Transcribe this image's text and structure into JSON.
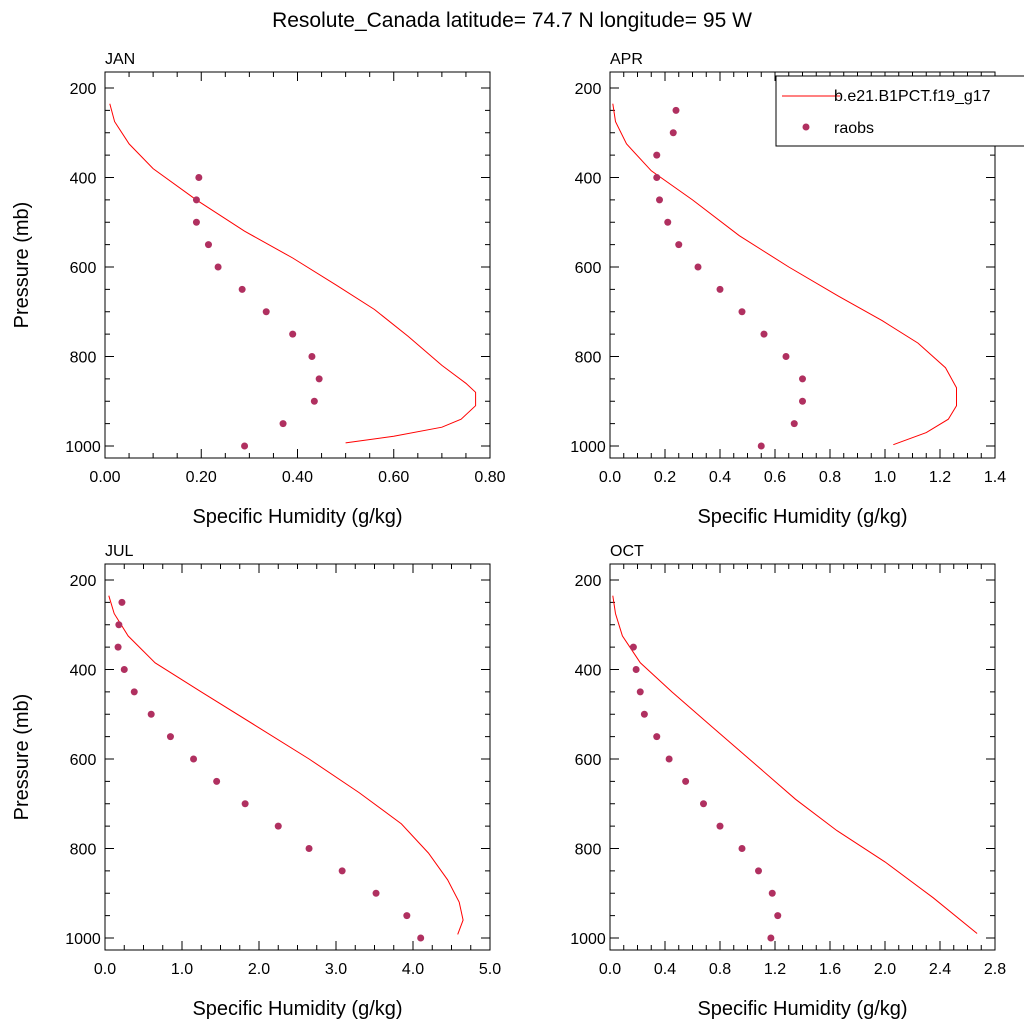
{
  "title": "Resolute_Canada  latitude= 74.7 N longitude= 95 W",
  "colors": {
    "model": "#ff0000",
    "obs": "#b03060",
    "axis": "#000000"
  },
  "legend": {
    "model_label": "b.e21.B1PCT.f19_g17",
    "obs_label": "raobs"
  },
  "chart_data": [
    {
      "type": "line",
      "panel": "JAN",
      "xlabel": "Specific Humidity (g/kg)",
      "ylabel": "Pressure (mb)",
      "xlim": [
        0,
        0.8
      ],
      "ylim": [
        1000,
        200
      ],
      "xticks": [
        "0.00",
        "0.20",
        "0.40",
        "0.60",
        "0.80"
      ],
      "yticks": [
        "200",
        "400",
        "600",
        "800",
        "1000"
      ],
      "series": [
        {
          "name": "b.e21.B1PCT.f19_g17",
          "kind": "line",
          "x": [
            0.01,
            0.02,
            0.05,
            0.1,
            0.19,
            0.29,
            0.39,
            0.48,
            0.56,
            0.63,
            0.7,
            0.75,
            0.77,
            0.77,
            0.74,
            0.7,
            0.6,
            0.5
          ],
          "y": [
            235,
            275,
            325,
            380,
            450,
            520,
            580,
            640,
            695,
            755,
            820,
            860,
            880,
            910,
            940,
            958,
            978,
            993
          ]
        },
        {
          "name": "raobs",
          "kind": "scatter",
          "x": [
            0.195,
            0.19,
            0.19,
            0.215,
            0.235,
            0.285,
            0.335,
            0.39,
            0.43,
            0.445,
            0.435,
            0.37,
            0.29
          ],
          "y": [
            400,
            450,
            500,
            550,
            600,
            650,
            700,
            750,
            800,
            850,
            900,
            950,
            1000
          ]
        }
      ]
    },
    {
      "type": "line",
      "panel": "APR",
      "xlabel": "Specific Humidity (g/kg)",
      "ylabel": "",
      "xlim": [
        0,
        1.4
      ],
      "ylim": [
        1000,
        200
      ],
      "xticks": [
        "0.0",
        "0.2",
        "0.4",
        "0.6",
        "0.8",
        "1.0",
        "1.2",
        "1.4"
      ],
      "yticks": [
        "200",
        "400",
        "600",
        "800",
        "1000"
      ],
      "series": [
        {
          "name": "b.e21.B1PCT.f19_g17",
          "kind": "line",
          "x": [
            0.01,
            0.02,
            0.06,
            0.15,
            0.3,
            0.47,
            0.65,
            0.83,
            0.99,
            1.12,
            1.22,
            1.26,
            1.26,
            1.23,
            1.15,
            1.03
          ],
          "y": [
            235,
            275,
            325,
            385,
            450,
            530,
            600,
            665,
            720,
            770,
            825,
            870,
            910,
            940,
            970,
            997
          ]
        },
        {
          "name": "raobs",
          "kind": "scatter",
          "x": [
            0.24,
            0.23,
            0.17,
            0.17,
            0.18,
            0.21,
            0.25,
            0.32,
            0.4,
            0.48,
            0.56,
            0.64,
            0.7,
            0.7,
            0.67,
            0.55
          ],
          "y": [
            250,
            300,
            350,
            400,
            450,
            500,
            550,
            600,
            650,
            700,
            750,
            800,
            850,
            900,
            950,
            1000
          ]
        }
      ]
    },
    {
      "type": "line",
      "panel": "JUL",
      "xlabel": "Specific Humidity (g/kg)",
      "ylabel": "Pressure (mb)",
      "xlim": [
        0,
        5.0
      ],
      "ylim": [
        1000,
        200
      ],
      "xticks": [
        "0.0",
        "1.0",
        "2.0",
        "3.0",
        "4.0",
        "5.0"
      ],
      "yticks": [
        "200",
        "400",
        "600",
        "800",
        "1000"
      ],
      "series": [
        {
          "name": "b.e21.B1PCT.f19_g17",
          "kind": "line",
          "x": [
            0.05,
            0.12,
            0.3,
            0.65,
            1.25,
            1.95,
            2.65,
            3.3,
            3.85,
            4.2,
            4.45,
            4.6,
            4.65,
            4.58
          ],
          "y": [
            235,
            275,
            325,
            385,
            450,
            525,
            600,
            675,
            745,
            810,
            870,
            920,
            960,
            992
          ]
        },
        {
          "name": "raobs",
          "kind": "scatter",
          "x": [
            0.22,
            0.18,
            0.17,
            0.25,
            0.38,
            0.6,
            0.85,
            1.15,
            1.45,
            1.82,
            2.25,
            2.65,
            3.08,
            3.52,
            3.92,
            4.1
          ],
          "y": [
            250,
            300,
            350,
            400,
            450,
            500,
            550,
            600,
            650,
            700,
            750,
            800,
            850,
            900,
            950,
            1000
          ]
        }
      ]
    },
    {
      "type": "line",
      "panel": "OCT",
      "xlabel": "Specific Humidity (g/kg)",
      "ylabel": "",
      "xlim": [
        0,
        2.8
      ],
      "ylim": [
        1000,
        200
      ],
      "xticks": [
        "0.0",
        "0.4",
        "0.8",
        "1.2",
        "1.6",
        "2.0",
        "2.4",
        "2.8"
      ],
      "yticks": [
        "200",
        "400",
        "600",
        "800",
        "1000"
      ],
      "series": [
        {
          "name": "b.e21.B1PCT.f19_g17",
          "kind": "line",
          "x": [
            0.02,
            0.04,
            0.09,
            0.22,
            0.45,
            0.75,
            1.05,
            1.35,
            1.65,
            2.0,
            2.35,
            2.67
          ],
          "y": [
            235,
            275,
            325,
            385,
            450,
            530,
            610,
            690,
            760,
            830,
            910,
            990
          ]
        },
        {
          "name": "raobs",
          "kind": "scatter",
          "x": [
            0.17,
            0.19,
            0.22,
            0.25,
            0.34,
            0.43,
            0.55,
            0.68,
            0.8,
            0.96,
            1.08,
            1.18,
            1.22,
            1.17
          ],
          "y": [
            350,
            400,
            450,
            500,
            550,
            600,
            650,
            700,
            750,
            800,
            850,
            900,
            950,
            1000
          ]
        }
      ]
    }
  ]
}
